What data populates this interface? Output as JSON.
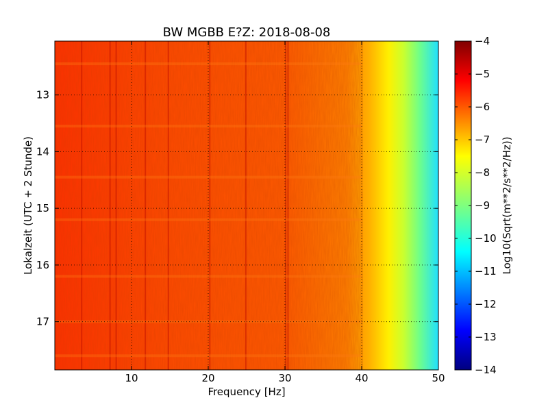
{
  "chart_data": {
    "type": "heatmap",
    "title": "BW MGBB E?Z: 2018-08-08",
    "xlabel": "Frequency [Hz]",
    "ylabel": "Lokalzeit (UTC + 2 Stunde)",
    "xlim": [
      0,
      50
    ],
    "ylim": [
      17.85,
      12.05
    ],
    "y_inverted": true,
    "grid": true,
    "x_ticks": [
      "10",
      "20",
      "30",
      "40",
      "50"
    ],
    "x_tick_values": [
      10,
      20,
      30,
      40,
      50
    ],
    "y_ticks": [
      "13",
      "14",
      "15",
      "16",
      "17"
    ],
    "y_tick_values": [
      13,
      14,
      15,
      16,
      17
    ],
    "colormap": "jet",
    "colorbar": {
      "label": "Log10(Sqrt(m**2/s**2/Hz))",
      "range": [
        -14,
        -4
      ],
      "ticks": [
        "−4",
        "−5",
        "−6",
        "−7",
        "−8",
        "−9",
        "−10",
        "−11",
        "−12",
        "−13",
        "−14"
      ],
      "tick_values": [
        -4,
        -5,
        -6,
        -7,
        -8,
        -9,
        -10,
        -11,
        -12,
        -13,
        -14
      ]
    },
    "spectrum_profile": {
      "frequency_hz": [
        0,
        5,
        10,
        20,
        30,
        34,
        38,
        40,
        42,
        44,
        46,
        48,
        50
      ],
      "log_psd": [
        -5.6,
        -5.5,
        -5.6,
        -5.7,
        -5.8,
        -5.9,
        -6.3,
        -6.7,
        -7.2,
        -7.8,
        -8.4,
        -9.1,
        -9.8
      ]
    },
    "spectral_lines_hz": [
      3.5,
      7.2,
      8.0,
      11.8,
      14.8,
      20.2,
      24.9,
      30.1,
      30.4
    ]
  }
}
